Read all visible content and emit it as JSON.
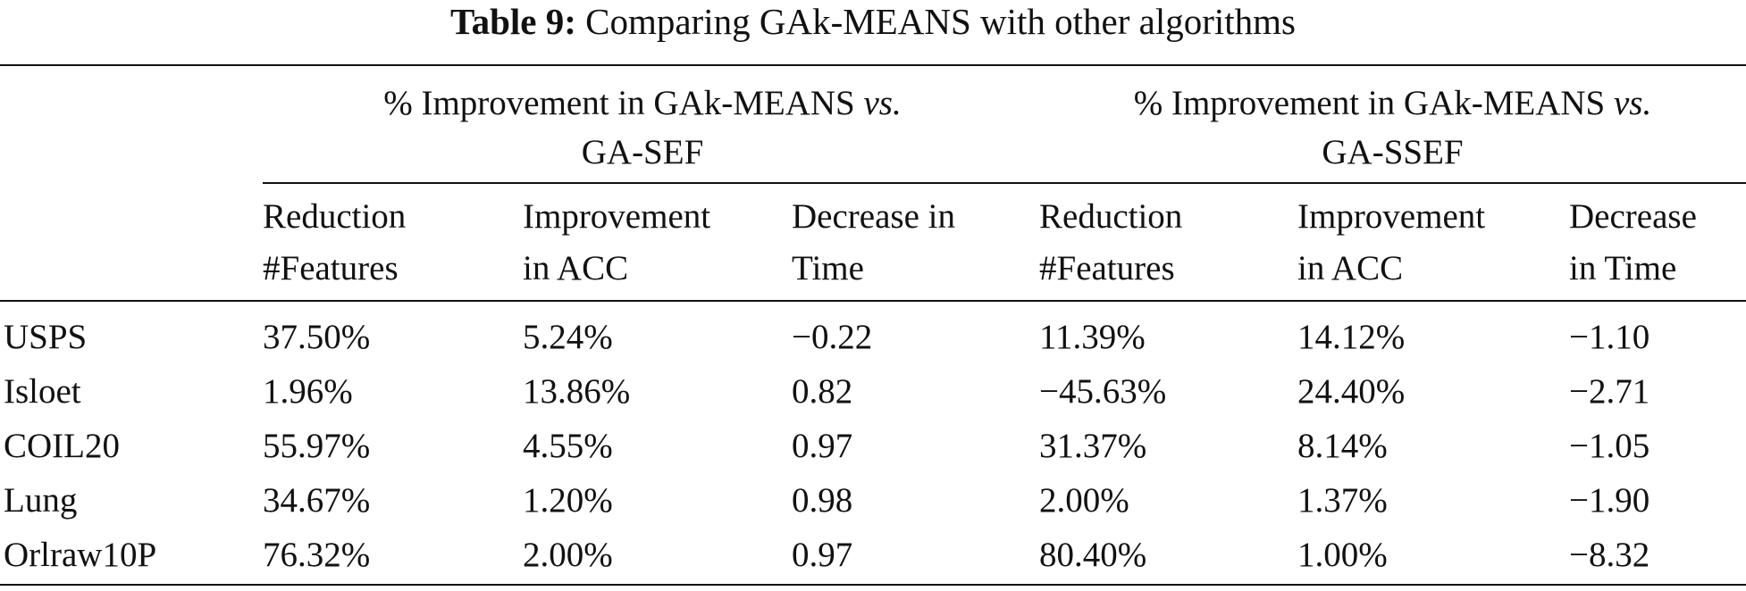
{
  "caption": {
    "label": "Table 9:",
    "text": "Comparing GAk-MEANS with other algorithms"
  },
  "groups": [
    {
      "prefix": "% Improvement in GAk-MEANS",
      "vs": "vs.",
      "target": "GA-SEF"
    },
    {
      "prefix": "% Improvement in GAk-MEANS",
      "vs": "vs.",
      "target": "GA-SSEF"
    }
  ],
  "subheaders": [
    {
      "line1": "Reduction",
      "line2": "#Features"
    },
    {
      "line1": "Improvement",
      "line2": "in ACC"
    },
    {
      "line1": "Decrease in",
      "line2": "Time"
    },
    {
      "line1": "Reduction",
      "line2": "#Features"
    },
    {
      "line1": "Improvement",
      "line2": "in ACC"
    },
    {
      "line1": "Decrease",
      "line2": "in Time"
    }
  ],
  "rows": [
    {
      "name": "USPS",
      "values": [
        "37.50%",
        "5.24%",
        "−0.22",
        "11.39%",
        "14.12%",
        "−1.10"
      ]
    },
    {
      "name": "Isloet",
      "values": [
        "1.96%",
        "13.86%",
        "0.82",
        "−45.63%",
        "24.40%",
        "−2.71"
      ]
    },
    {
      "name": "COIL20",
      "values": [
        "55.97%",
        "4.55%",
        "0.97",
        "31.37%",
        "8.14%",
        "−1.05"
      ]
    },
    {
      "name": "Lung",
      "values": [
        "34.67%",
        "1.20%",
        "0.98",
        "2.00%",
        "1.37%",
        "−1.90"
      ]
    },
    {
      "name": "Orlraw10P",
      "values": [
        "76.32%",
        "2.00%",
        "0.97",
        "80.40%",
        "1.00%",
        "−8.32"
      ]
    }
  ]
}
